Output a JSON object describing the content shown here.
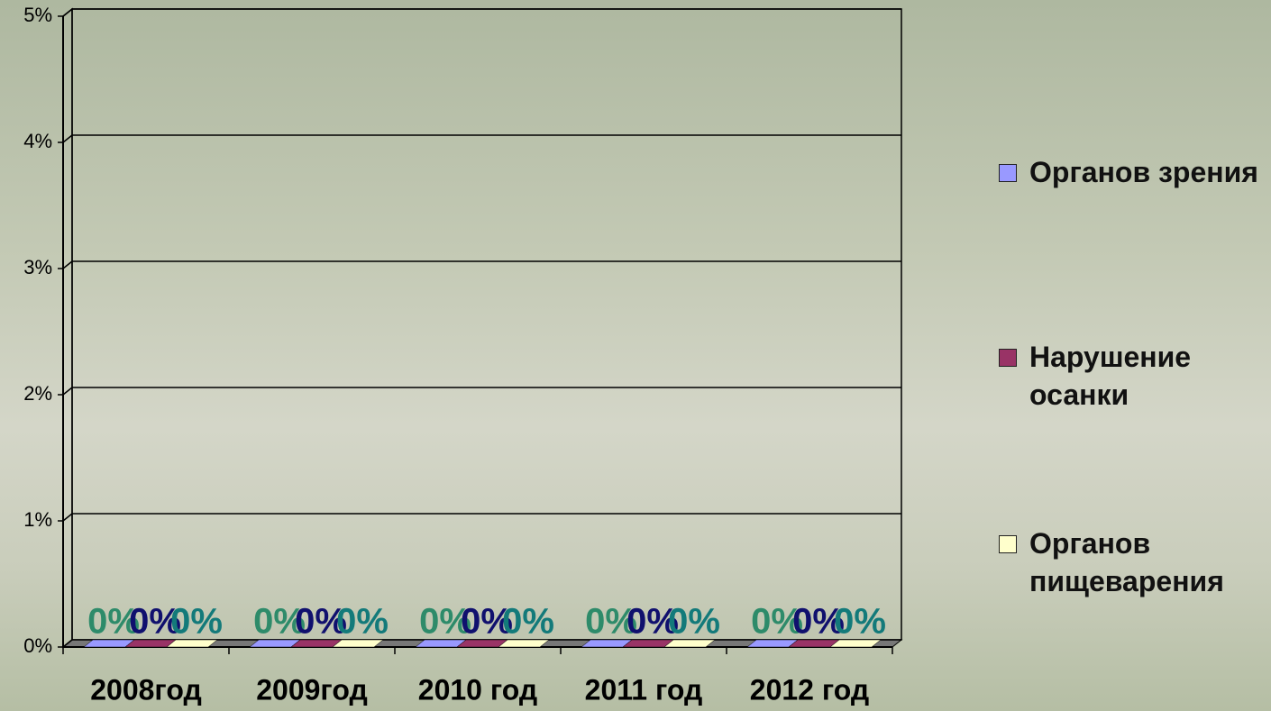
{
  "chart_data": {
    "type": "bar",
    "categories": [
      "2008год",
      "2009год",
      "2010 год",
      "2011 год",
      "2012 год"
    ],
    "series": [
      {
        "name": "Органов зрения",
        "color": "#9999ff",
        "label_color": "#2e8b6a",
        "values": [
          0,
          0,
          0,
          0,
          0
        ],
        "value_labels": [
          "0%",
          "0%",
          "0%",
          "0%",
          "0%"
        ]
      },
      {
        "name": "Нарушение осанки",
        "color": "#993366",
        "label_color": "#10106e",
        "values": [
          0,
          0,
          0,
          0,
          0
        ],
        "value_labels": [
          "0%",
          "0%",
          "0%",
          "0%",
          "0%"
        ]
      },
      {
        "name": "Органов пищеварения",
        "color": "#ffffcc",
        "label_color": "#137a7a",
        "values": [
          0,
          0,
          0,
          0,
          0
        ],
        "value_labels": [
          "0%",
          "0%",
          "0%",
          "0%",
          "0%"
        ]
      }
    ],
    "ylim": [
      0,
      5
    ],
    "yticks": [
      {
        "value": 0,
        "label": "0%"
      },
      {
        "value": 1,
        "label": "1%"
      },
      {
        "value": 2,
        "label": "2%"
      },
      {
        "value": 3,
        "label": "3%"
      },
      {
        "value": 4,
        "label": "4%"
      },
      {
        "value": 5,
        "label": "5%"
      }
    ],
    "grid": true
  }
}
